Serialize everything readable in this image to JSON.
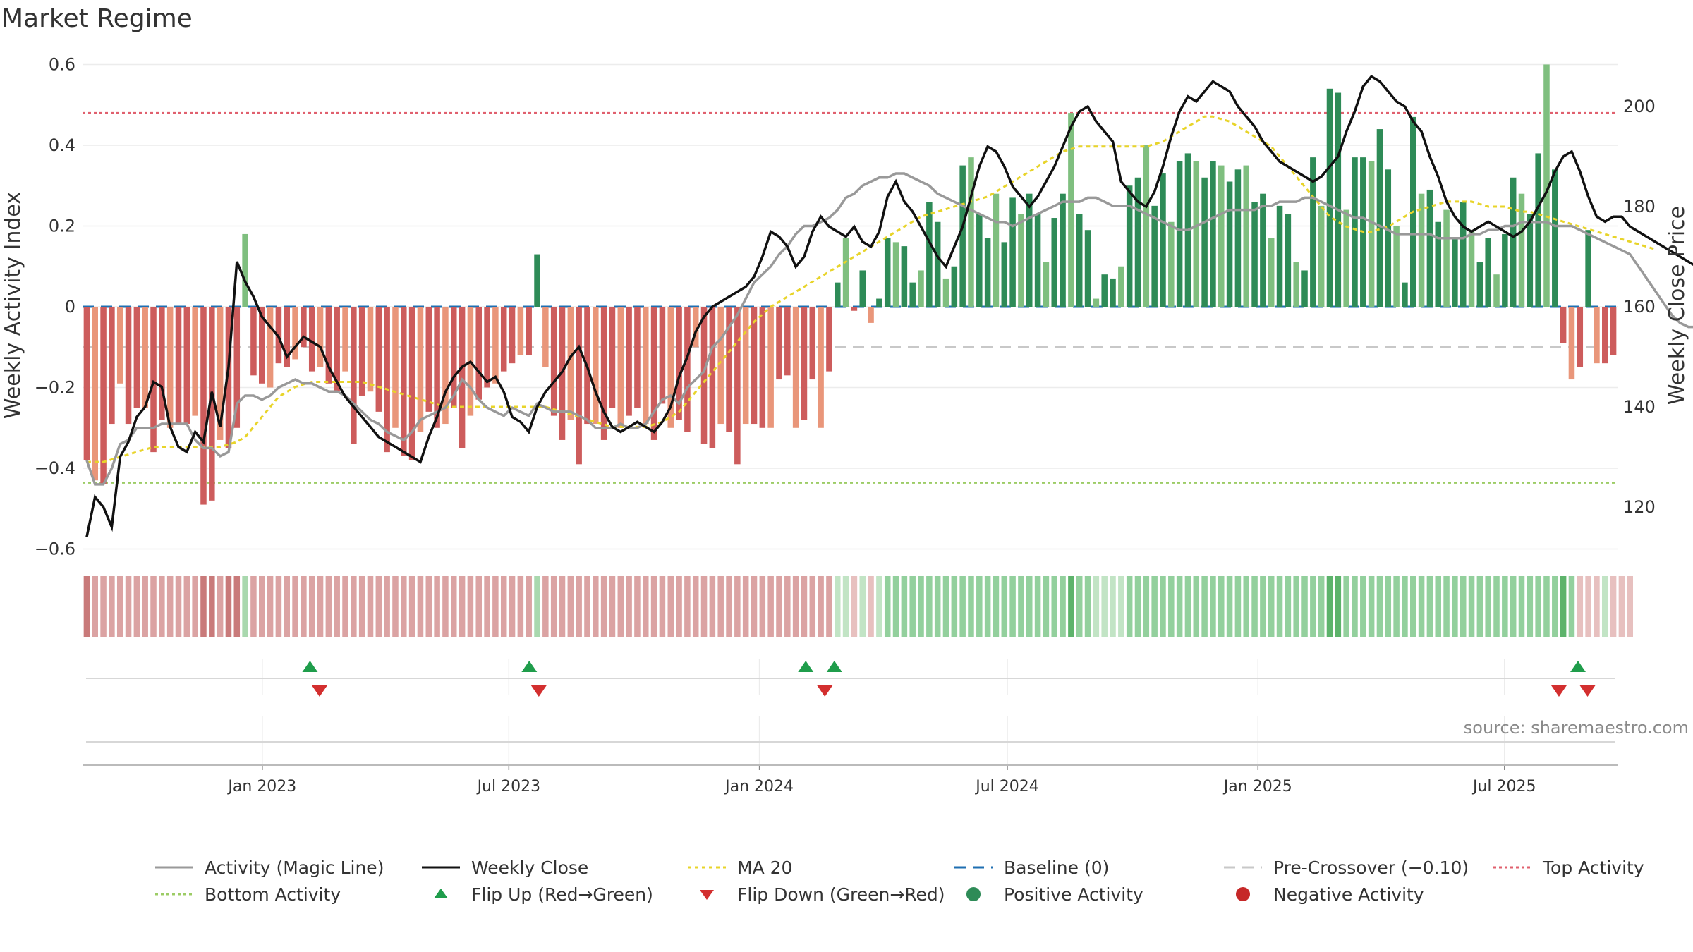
{
  "page": {
    "title": "Market Regime",
    "source": "source: sharemaestro.com"
  },
  "colors": {
    "strong_green": "#2e8b57",
    "light_green": "#7fbf7f",
    "strong_red": "#cd5c5c",
    "light_red": "#e9967a",
    "magic_line": "#999999",
    "weekly_close": "#111111",
    "ma20": "#e8d42a",
    "baseline": "#1f6fb2",
    "pre_crossover": "#c8c8c8",
    "top_activity": "#e0606e",
    "bottom_activity": "#9ccc65",
    "flip_up": "#1f9d4b",
    "flip_down": "#d32f2f"
  },
  "legend": [
    {
      "label": "Activity (Magic Line)",
      "kind": "line",
      "color": "#999999",
      "dash": ""
    },
    {
      "label": "Weekly Close",
      "kind": "line",
      "color": "#111111",
      "dash": ""
    },
    {
      "label": "MA 20",
      "kind": "line",
      "color": "#e8d42a",
      "dash": "5,5"
    },
    {
      "label": "Baseline (0)",
      "kind": "line",
      "color": "#1f6fb2",
      "dash": "16,10"
    },
    {
      "label": "Pre-Crossover (−0.10)",
      "kind": "line",
      "color": "#c8c8c8",
      "dash": "16,10"
    },
    {
      "label": "Top Activity",
      "kind": "line",
      "color": "#e0606e",
      "dash": "4,4"
    },
    {
      "label": "Bottom Activity",
      "kind": "line",
      "color": "#9ccc65",
      "dash": "4,4"
    },
    {
      "label": "Flip Up (Red→Green)",
      "kind": "tri-up",
      "color": "#1f9d4b"
    },
    {
      "label": "Flip Down (Green→Red)",
      "kind": "tri-down",
      "color": "#d32f2f"
    },
    {
      "label": "Positive Activity",
      "kind": "dot",
      "color": "#2e8b57"
    },
    {
      "label": "Negative Activity",
      "kind": "dot",
      "color": "#c62828"
    }
  ],
  "chart_data": {
    "type": "bar",
    "title": "Market Regime",
    "ylabel": "Weekly Activity Index",
    "ylabel_right": "Weekly Close Price",
    "ylim": [
      -0.62,
      0.62
    ],
    "ylim_right": [
      110,
      210
    ],
    "yticks": [
      -0.6,
      -0.4,
      -0.2,
      0,
      0.2,
      0.4,
      0.6
    ],
    "yticks_right": [
      120,
      140,
      160,
      180,
      200
    ],
    "yticks_right_labels": [
      "120",
      "140",
      "160",
      "180",
      "200"
    ],
    "yticks_labels": [
      "−0.6",
      "−0.4",
      "−0.2",
      "0",
      "0.2",
      "0.4",
      "0.6"
    ],
    "x_start": "2022-08-22",
    "x_end": "2025-09-22",
    "x_ticks": [
      "2023-01-01",
      "2023-07-01",
      "2024-01-01",
      "2024-07-01",
      "2025-01-01",
      "2025-07-01"
    ],
    "x_tick_labels": [
      "Jan 2023",
      "Jul 2023",
      "Jan 2024",
      "Jul 2024",
      "Jan 2025",
      "Jul 2025"
    ],
    "reference_lines": {
      "baseline": 0,
      "pre_crossover": -0.1,
      "top_activity": 0.48,
      "bottom_activity": -0.436
    },
    "activity_bars": [
      -0.38,
      -0.43,
      -0.44,
      -0.29,
      -0.19,
      -0.29,
      -0.25,
      -0.25,
      -0.36,
      -0.28,
      -0.3,
      -0.29,
      -0.29,
      -0.27,
      -0.49,
      -0.48,
      -0.33,
      -0.35,
      -0.3,
      0.18,
      -0.17,
      -0.19,
      -0.2,
      -0.14,
      -0.15,
      -0.13,
      -0.1,
      -0.16,
      -0.15,
      -0.19,
      -0.21,
      -0.16,
      -0.34,
      -0.22,
      -0.21,
      -0.26,
      -0.36,
      -0.3,
      -0.37,
      -0.38,
      -0.31,
      -0.26,
      -0.3,
      -0.29,
      -0.25,
      -0.35,
      -0.27,
      -0.23,
      -0.2,
      -0.19,
      -0.16,
      -0.14,
      -0.12,
      -0.12,
      0.13,
      -0.15,
      -0.27,
      -0.33,
      -0.28,
      -0.39,
      -0.29,
      -0.29,
      -0.33,
      -0.25,
      -0.3,
      -0.27,
      -0.25,
      -0.29,
      -0.33,
      -0.24,
      -0.3,
      -0.28,
      -0.31,
      -0.1,
      -0.34,
      -0.35,
      -0.29,
      -0.31,
      -0.39,
      -0.29,
      -0.29,
      -0.3,
      -0.3,
      -0.18,
      -0.17,
      -0.3,
      -0.28,
      -0.18,
      -0.3,
      -0.16,
      0.06,
      0.17,
      -0.01,
      0.09,
      -0.04,
      0.02,
      0.17,
      0.16,
      0.15,
      0.06,
      0.09,
      0.26,
      0.21,
      0.07,
      0.1,
      0.35,
      0.37,
      0.23,
      0.17,
      0.28,
      0.16,
      0.27,
      0.23,
      0.28,
      0.23,
      0.11,
      0.22,
      0.28,
      0.48,
      0.23,
      0.19,
      0.02,
      0.08,
      0.07,
      0.1,
      0.3,
      0.32,
      0.4,
      0.25,
      0.33,
      0.21,
      0.36,
      0.38,
      0.36,
      0.32,
      0.36,
      0.35,
      0.31,
      0.34,
      0.35,
      0.26,
      0.28,
      0.17,
      0.25,
      0.23,
      0.11,
      0.09,
      0.37,
      0.25,
      0.54,
      0.53,
      0.24,
      0.37,
      0.37,
      0.36,
      0.44,
      0.34,
      0.2,
      0.06,
      0.47,
      0.28,
      0.29,
      0.21,
      0.24,
      0.17,
      0.26,
      0.19,
      0.11,
      0.17,
      0.08,
      0.18,
      0.32,
      0.28,
      0.23,
      0.38,
      0.6,
      0.34,
      -0.09,
      -0.18,
      -0.15,
      0.19,
      -0.14,
      -0.14,
      -0.12
    ],
    "magic_line": [
      -0.38,
      -0.44,
      -0.44,
      -0.4,
      -0.34,
      -0.33,
      -0.3,
      -0.3,
      -0.3,
      -0.29,
      -0.29,
      -0.29,
      -0.29,
      -0.33,
      -0.35,
      -0.35,
      -0.37,
      -0.36,
      -0.24,
      -0.22,
      -0.22,
      -0.23,
      -0.22,
      -0.2,
      -0.19,
      -0.18,
      -0.19,
      -0.19,
      -0.2,
      -0.21,
      -0.21,
      -0.22,
      -0.24,
      -0.26,
      -0.28,
      -0.29,
      -0.31,
      -0.32,
      -0.33,
      -0.31,
      -0.28,
      -0.27,
      -0.26,
      -0.25,
      -0.22,
      -0.18,
      -0.2,
      -0.23,
      -0.25,
      -0.26,
      -0.27,
      -0.25,
      -0.26,
      -0.27,
      -0.24,
      -0.25,
      -0.26,
      -0.26,
      -0.26,
      -0.27,
      -0.28,
      -0.3,
      -0.3,
      -0.3,
      -0.29,
      -0.3,
      -0.3,
      -0.29,
      -0.26,
      -0.23,
      -0.22,
      -0.24,
      -0.2,
      -0.18,
      -0.16,
      -0.1,
      -0.08,
      -0.05,
      -0.02,
      0.02,
      0.06,
      0.08,
      0.1,
      0.13,
      0.15,
      0.18,
      0.2,
      0.2,
      0.21,
      0.22,
      0.24,
      0.27,
      0.28,
      0.3,
      0.31,
      0.32,
      0.32,
      0.33,
      0.33,
      0.32,
      0.31,
      0.3,
      0.28,
      0.27,
      0.26,
      0.25,
      0.24,
      0.23,
      0.22,
      0.21,
      0.21,
      0.2,
      0.21,
      0.22,
      0.23,
      0.24,
      0.25,
      0.26,
      0.26,
      0.26,
      0.27,
      0.27,
      0.26,
      0.25,
      0.25,
      0.25,
      0.24,
      0.23,
      0.22,
      0.21,
      0.2,
      0.19,
      0.19,
      0.2,
      0.21,
      0.22,
      0.23,
      0.24,
      0.24,
      0.24,
      0.24,
      0.25,
      0.25,
      0.26,
      0.26,
      0.26,
      0.27,
      0.27,
      0.26,
      0.25,
      0.24,
      0.23,
      0.22,
      0.22,
      0.21,
      0.2,
      0.19,
      0.18,
      0.18,
      0.18,
      0.18,
      0.18,
      0.17,
      0.17,
      0.17,
      0.17,
      0.18,
      0.18,
      0.19,
      0.19,
      0.2,
      0.2,
      0.21,
      0.21,
      0.21,
      0.21,
      0.2,
      0.2,
      0.2,
      0.19,
      0.18,
      0.17,
      0.16,
      0.15,
      0.14,
      0.13,
      0.1,
      0.07,
      0.04,
      0.01,
      -0.02,
      -0.04,
      -0.05,
      -0.05,
      -0.05,
      -0.05,
      -0.04,
      -0.04,
      -0.04,
      -0.04,
      -0.04
    ],
    "weekly_close": [
      114,
      122,
      120,
      116,
      130,
      133,
      138,
      140,
      145,
      144,
      136,
      132,
      131,
      135,
      133,
      143,
      136,
      148,
      169,
      165,
      162,
      158,
      156,
      154,
      150,
      152,
      154,
      153,
      152,
      148,
      145,
      142,
      140,
      138,
      136,
      134,
      133,
      132,
      131,
      130,
      129,
      134,
      138,
      143,
      146,
      148,
      149,
      147,
      145,
      146,
      143,
      138,
      137,
      135,
      140,
      143,
      145,
      147,
      150,
      152,
      148,
      143,
      139,
      136,
      135,
      136,
      137,
      136,
      135,
      137,
      140,
      146,
      150,
      155,
      158,
      160,
      161,
      162,
      163,
      164,
      166,
      170,
      175,
      174,
      172,
      168,
      170,
      175,
      178,
      176,
      175,
      174,
      176,
      173,
      172,
      175,
      182,
      185,
      181,
      179,
      176,
      173,
      170,
      168,
      172,
      176,
      182,
      188,
      192,
      191,
      188,
      184,
      182,
      180,
      182,
      185,
      188,
      192,
      196,
      199,
      200,
      197,
      195,
      193,
      185,
      183,
      181,
      180,
      183,
      188,
      194,
      199,
      202,
      201,
      203,
      205,
      204,
      203,
      200,
      198,
      196,
      193,
      191,
      189,
      188,
      187,
      186,
      185,
      186,
      188,
      190,
      195,
      199,
      204,
      206,
      205,
      203,
      201,
      200,
      197,
      195,
      190,
      186,
      181,
      178,
      176,
      175,
      176,
      177,
      176,
      175,
      174,
      175,
      177,
      180,
      183,
      187,
      190,
      191,
      187,
      182,
      178,
      177,
      178,
      178,
      176,
      175,
      174,
      173,
      172,
      171,
      170,
      169,
      168,
      167,
      166,
      166
    ],
    "ma20": [
      129,
      129,
      129,
      129.5,
      130,
      130.5,
      131,
      131.5,
      132,
      132,
      132,
      132,
      132,
      132,
      132,
      132,
      132,
      132.5,
      133,
      134,
      136,
      138,
      140,
      142,
      143,
      144,
      144.5,
      145,
      145,
      145,
      145,
      145,
      145,
      145,
      144.5,
      144,
      143.5,
      143,
      142.5,
      142,
      141.5,
      141,
      140.5,
      140,
      140,
      140,
      140,
      140,
      140,
      140,
      140,
      140,
      140,
      140,
      140,
      140,
      139.5,
      139,
      138.5,
      138,
      137.5,
      137,
      136.5,
      136,
      136,
      136,
      136,
      136,
      136.5,
      137,
      138,
      139,
      141,
      143,
      145,
      147,
      149,
      151,
      153,
      155,
      157,
      158.5,
      160,
      161,
      162,
      163,
      164,
      165,
      166,
      167,
      168,
      169,
      170,
      171,
      172,
      173,
      174,
      175,
      176,
      177,
      178,
      178.5,
      179,
      179.5,
      180,
      180.5,
      181,
      181.5,
      182,
      183,
      184,
      185,
      186,
      187,
      188,
      189,
      190,
      191,
      191.5,
      192,
      192,
      192,
      192,
      192,
      192,
      192,
      192,
      192,
      192.5,
      193,
      194,
      195,
      196,
      197,
      198,
      198,
      197.5,
      197,
      196,
      195,
      194,
      193,
      192,
      190,
      188,
      186,
      184,
      182,
      180,
      178,
      177,
      176,
      175.5,
      175,
      175,
      175.5,
      176,
      177,
      178,
      179,
      179.5,
      180,
      180.5,
      181,
      181,
      181,
      181,
      180.5,
      180,
      180,
      180,
      179.5,
      179,
      179,
      178.5,
      178,
      177.5,
      177,
      176.5,
      176,
      175.5,
      175,
      174.5,
      174,
      173.5,
      173,
      172.5,
      172,
      171.5
    ],
    "regime_strip": [
      "sr",
      "lr",
      "lr",
      "lr",
      "lr",
      "lr",
      "lr",
      "lr",
      "lr",
      "lr",
      "lr",
      "lr",
      "lr",
      "lr",
      "sr",
      "sr",
      "lr",
      "sr",
      "sr",
      "gl",
      "lr",
      "lr",
      "lr",
      "lr",
      "lr",
      "lr",
      "lr",
      "lr",
      "lr",
      "lr",
      "lr",
      "lr",
      "lr",
      "lr",
      "lr",
      "lr",
      "lr",
      "lr",
      "lr",
      "lr",
      "lr",
      "lr",
      "lr",
      "lr",
      "lr",
      "lr",
      "lr",
      "lr",
      "lr",
      "lr",
      "lr",
      "lr",
      "lr",
      "lr",
      "gl",
      "lr",
      "lr",
      "lr",
      "lr",
      "lr",
      "lr",
      "lr",
      "lr",
      "lr",
      "lr",
      "lr",
      "lr",
      "lr",
      "lr",
      "lr",
      "lr",
      "lr",
      "lr",
      "lr",
      "lr",
      "lr",
      "lr",
      "lr",
      "lr",
      "lr",
      "lr",
      "lr",
      "lr",
      "lr",
      "lr",
      "lr",
      "lr",
      "lr",
      "lr",
      "lr",
      "gv",
      "gv",
      "rv",
      "gv",
      "rv",
      "gv",
      "gm",
      "gm",
      "gm",
      "gm",
      "gm",
      "gm",
      "gm",
      "gm",
      "gm",
      "gm",
      "gm",
      "gm",
      "gm",
      "gm",
      "gm",
      "gm",
      "gm",
      "gm",
      "gm",
      "gm",
      "gm",
      "gm",
      "gs",
      "gm",
      "gm",
      "gv",
      "gv",
      "gv",
      "gv",
      "gm",
      "gm",
      "gm",
      "gm",
      "gm",
      "gm",
      "gm",
      "gm",
      "gm",
      "gm",
      "gm",
      "gm",
      "gm",
      "gm",
      "gm",
      "gm",
      "gm",
      "gm",
      "gm",
      "gm",
      "gm",
      "gm",
      "gm",
      "gm",
      "gs",
      "gs",
      "gm",
      "gm",
      "gm",
      "gm",
      "gm",
      "gm",
      "gm",
      "gm",
      "gm",
      "gm",
      "gm",
      "gm",
      "gm",
      "gm",
      "gm",
      "gm",
      "gm",
      "gm",
      "gm",
      "gm",
      "gm",
      "gm",
      "gm",
      "gm",
      "gm",
      "gm",
      "gs",
      "gm",
      "rv",
      "rv",
      "rv",
      "gv",
      "rv",
      "rv",
      "rv"
    ],
    "flip_up_dates": [
      "2023-02-05",
      "2023-07-16",
      "2024-02-04",
      "2024-02-25",
      "2025-08-24"
    ],
    "flip_down_dates": [
      "2023-02-12",
      "2023-07-23",
      "2024-02-18",
      "2025-08-10",
      "2025-08-31"
    ]
  }
}
